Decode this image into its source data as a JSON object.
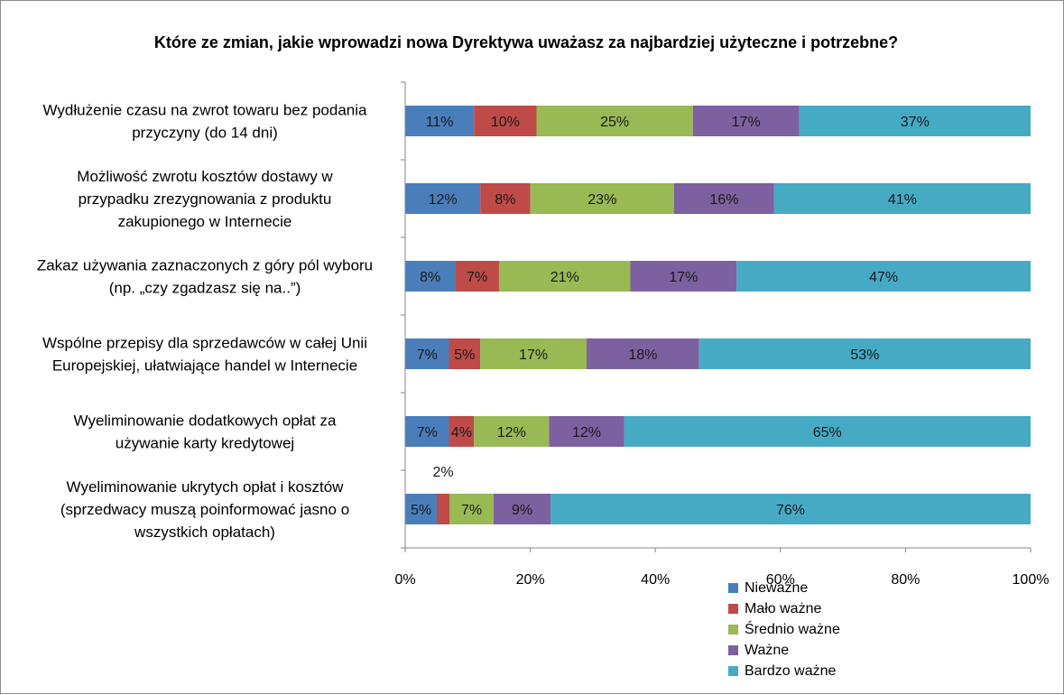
{
  "chart_data": {
    "type": "bar",
    "orientation": "horizontal",
    "stacked": "percent",
    "title": "Które ze zmian, jakie wprowadzi  nowa Dyrektywa uważasz za najbardziej użyteczne i potrzebne?",
    "categories": [
      [
        "Wydłużenie czasu na zwrot towaru bez podania",
        "przyczyny (do 14 dni)"
      ],
      [
        "Możliwość zwrotu kosztów dostawy w",
        "przypadku zrezygnowania z produktu",
        "zakupionego w Internecie"
      ],
      [
        "Zakaz używania zaznaczonych z góry pól wyboru",
        "(np. „czy zgadzasz się na..”)"
      ],
      [
        "Wspólne przepisy dla sprzedawców w całej Unii",
        "Europejskiej, ułatwiające handel w Internecie"
      ],
      [
        "Wyeliminowanie dodatkowych opłat za",
        "używanie karty kredytowej"
      ],
      [
        "Wyeliminowanie ukrytych opłat i kosztów",
        "(sprzedwacy muszą poinformować jasno o",
        "wszystkich opłatach)"
      ]
    ],
    "series": [
      {
        "name": "Nieważne",
        "color": "#4a7ebb",
        "values": [
          11,
          12,
          8,
          7,
          7,
          5
        ],
        "labels": [
          "11%",
          "12%",
          "8%",
          "7%",
          "7%",
          "5%"
        ]
      },
      {
        "name": "Mało ważne",
        "color": "#be4b48",
        "values": [
          10,
          8,
          7,
          5,
          4,
          2
        ],
        "labels": [
          "10%",
          "8%",
          "7%",
          "5%",
          "4%",
          "2%"
        ]
      },
      {
        "name": "Średnio ważne",
        "color": "#98b954",
        "values": [
          25,
          23,
          21,
          17,
          12,
          7
        ],
        "labels": [
          "25%",
          "23%",
          "21%",
          "17%",
          "12%",
          "7%"
        ]
      },
      {
        "name": "Ważne",
        "color": "#7d60a0",
        "values": [
          17,
          16,
          17,
          18,
          12,
          9
        ],
        "labels": [
          "17%",
          "16%",
          "17%",
          "18%",
          "12%",
          "9%"
        ]
      },
      {
        "name": "Bardzo ważne",
        "color": "#46aac5",
        "values": [
          37,
          41,
          47,
          53,
          65,
          76
        ],
        "labels": [
          "37%",
          "41%",
          "47%",
          "53%",
          "65%",
          "76%"
        ]
      }
    ],
    "xlim": [
      0,
      100
    ],
    "xticks": [
      "0%",
      "20%",
      "40%",
      "60%",
      "80%",
      "100%"
    ],
    "grid": false,
    "legend": "bottom-center"
  }
}
